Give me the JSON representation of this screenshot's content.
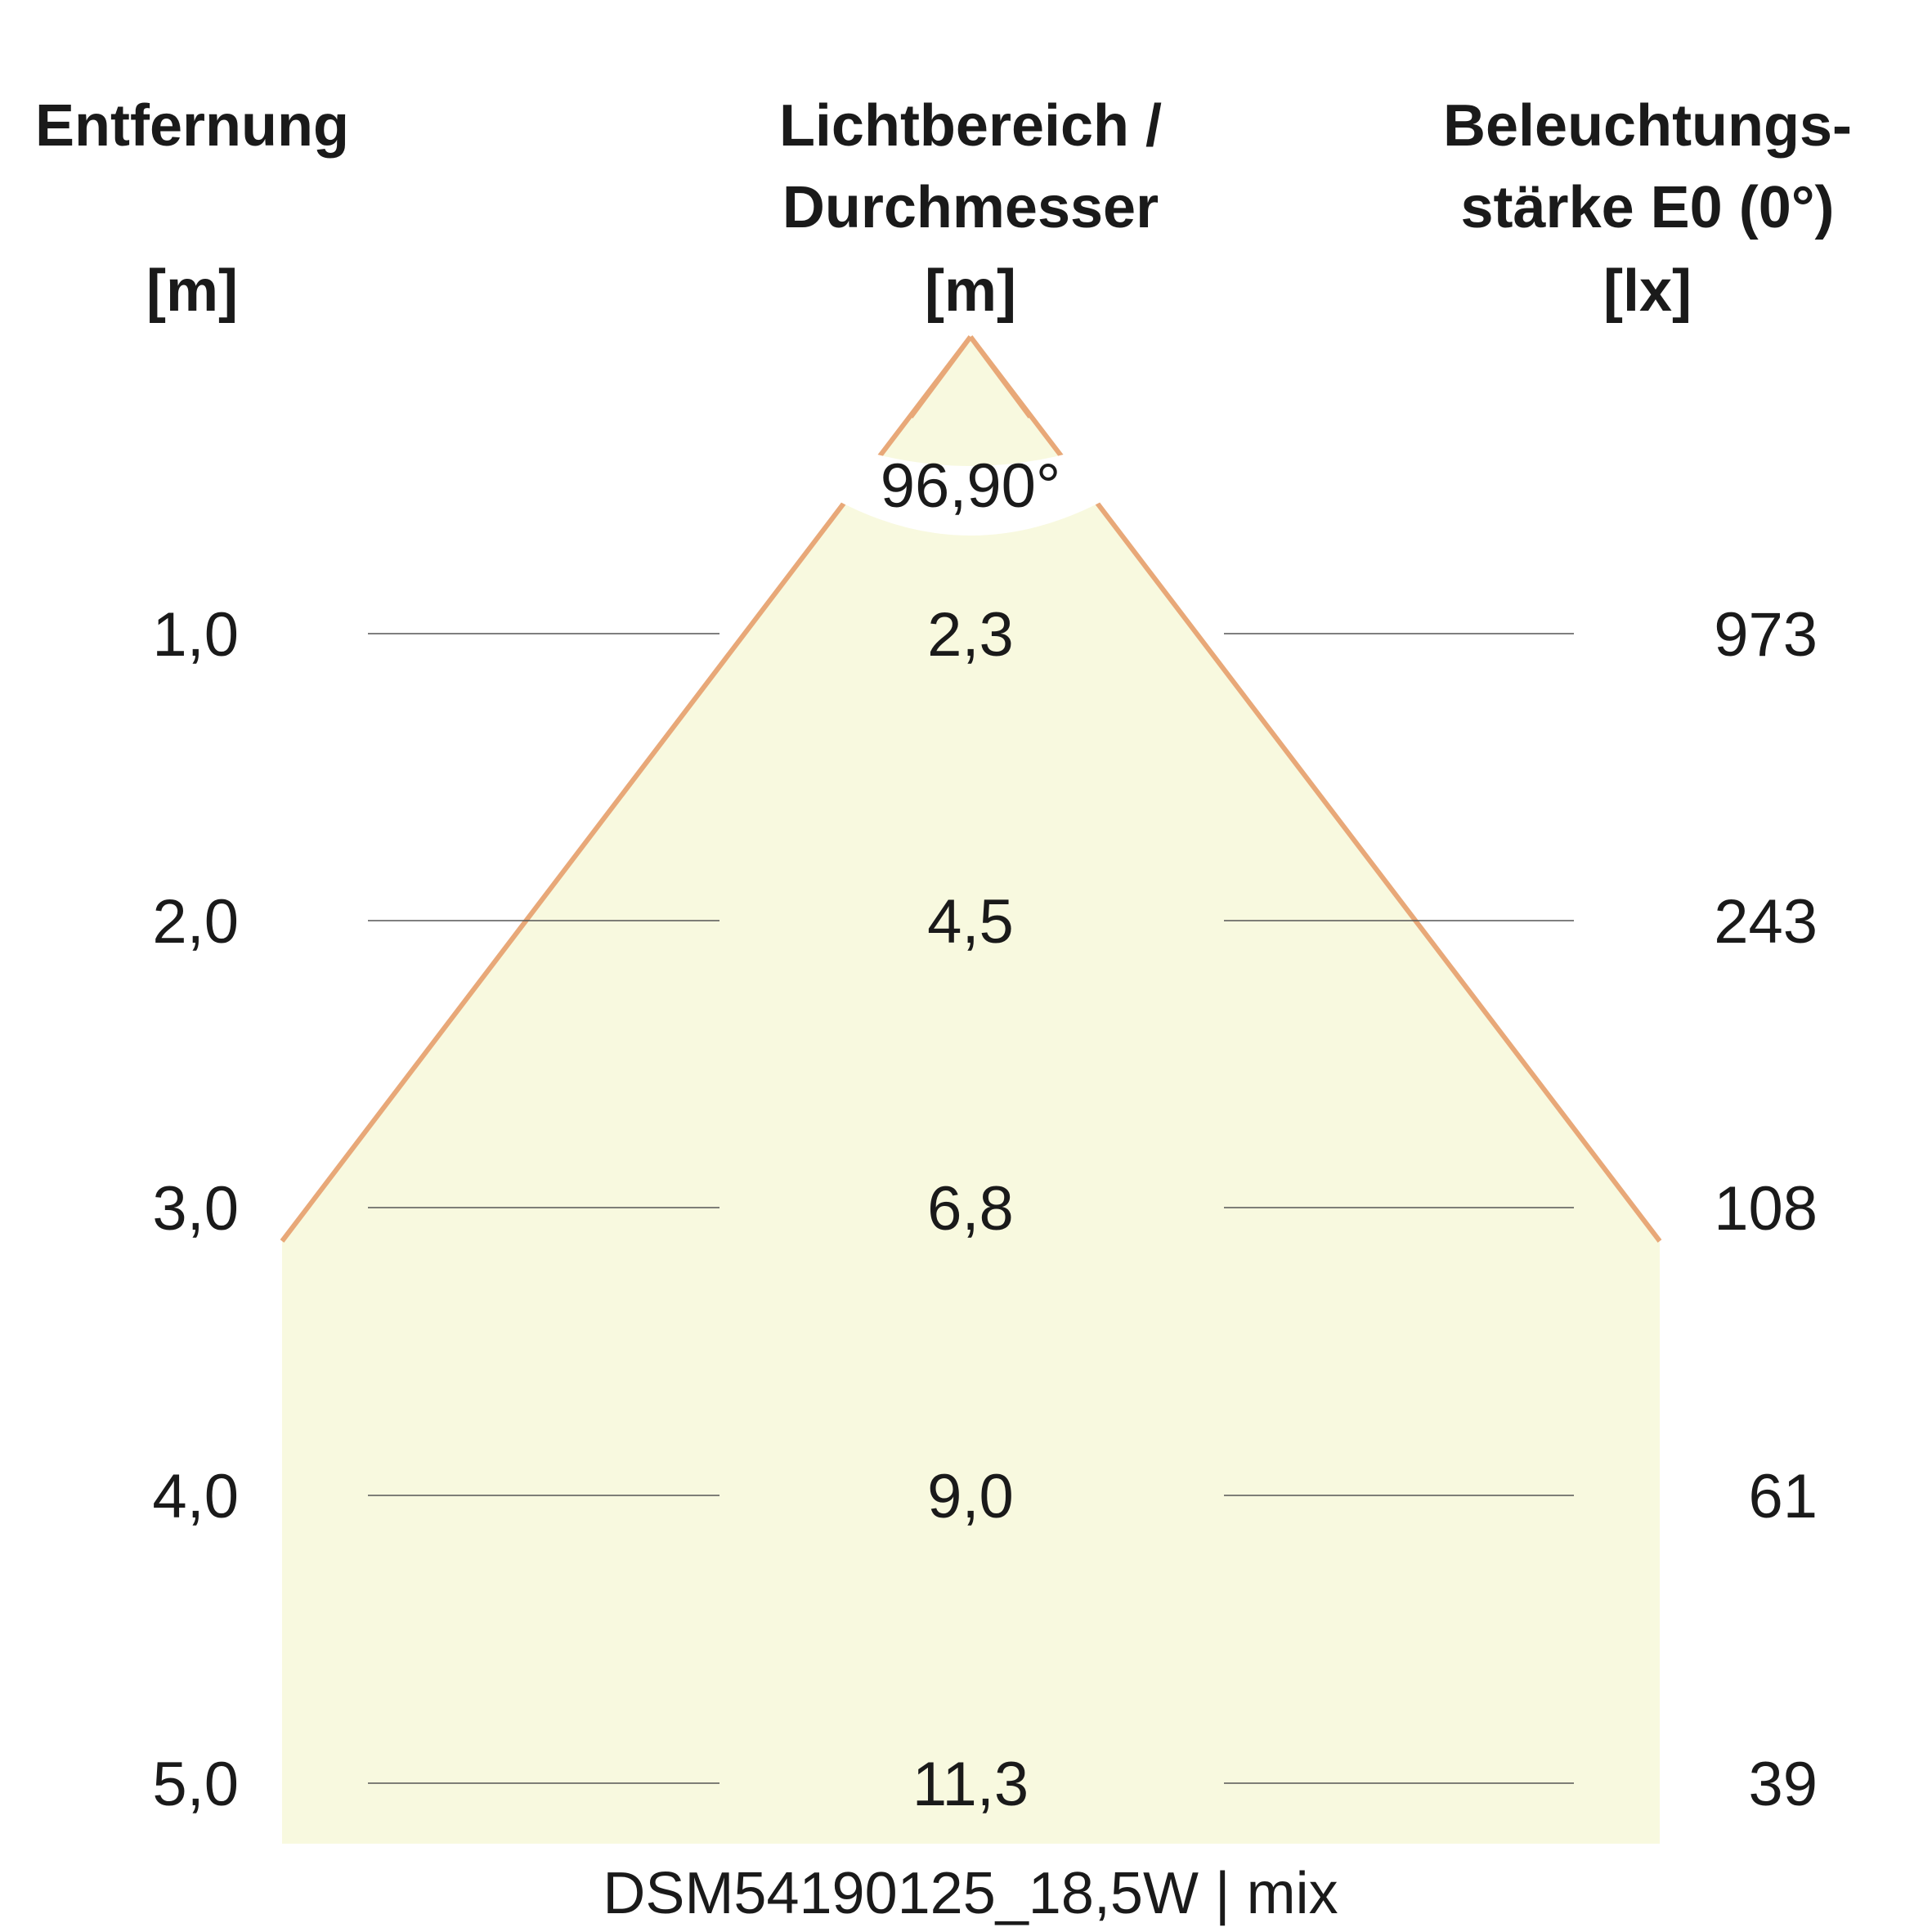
{
  "headers": {
    "distance": {
      "line1": "Entfernung",
      "unit": "[m]"
    },
    "diameter": {
      "line1": "Lichtbereich /",
      "line2": "Durchmesser",
      "unit": "[m]"
    },
    "illuminance": {
      "line1": "Beleuchtungs-",
      "line2": "stärke E0 (0°)",
      "unit": "[lx]"
    }
  },
  "beam_angle": "96,90°",
  "rows": [
    {
      "distance": "1,0",
      "diameter": "2,3",
      "lux": "973"
    },
    {
      "distance": "2,0",
      "diameter": "4,5",
      "lux": "243"
    },
    {
      "distance": "3,0",
      "diameter": "6,8",
      "lux": "108"
    },
    {
      "distance": "4,0",
      "diameter": "9,0",
      "lux": "61"
    },
    {
      "distance": "5,0",
      "diameter": "11,3",
      "lux": "39"
    }
  ],
  "footer": "DSM54190125_18,5W | mix",
  "colors": {
    "beam_fill": "#f8f9df",
    "beam_edge": "#e8a878",
    "row_line": "#555555",
    "text": "#1a1a1a"
  }
}
